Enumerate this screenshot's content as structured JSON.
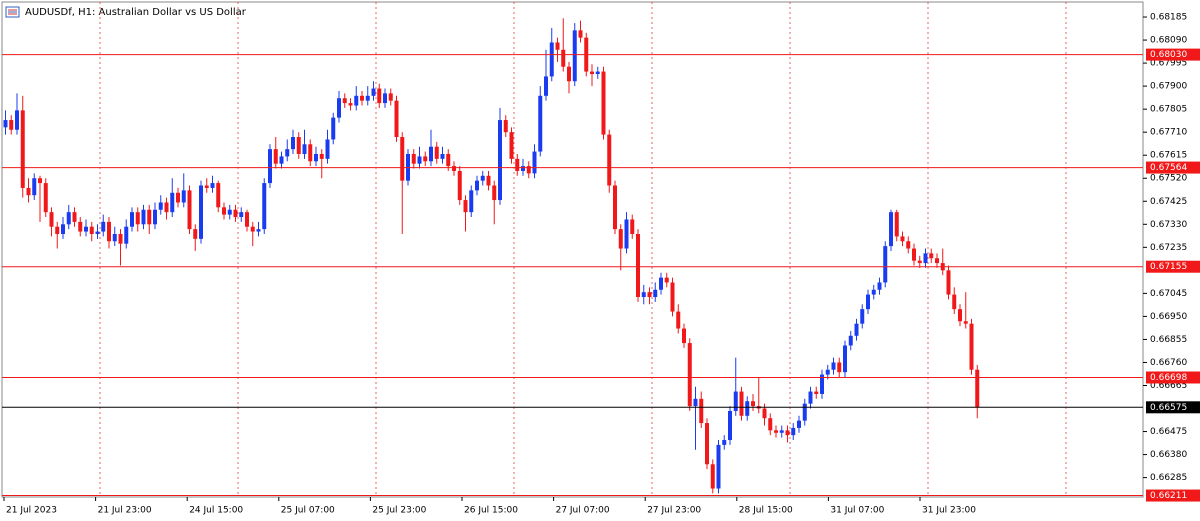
{
  "chart_data": {
    "type": "candlestick",
    "title": "AUDUSDf, H1:  Australian Dollar vs US Dollar",
    "up_color": "#1a3cf0",
    "down_color": "#f01818",
    "grid": true,
    "grid_color": "#e04040",
    "ylim": [
      0.66205,
      0.68247
    ],
    "yticks": [
      0.68185,
      {
        "value": 0.6809,
        "label": "0.68090"
      },
      0.67995,
      {
        "value": 0.679,
        "label": "0.67900"
      },
      0.67805,
      {
        "value": 0.6771,
        "label": "0.67710"
      },
      0.67615,
      {
        "value": 0.6752,
        "label": "0.67520"
      },
      0.67425,
      {
        "value": 0.6733,
        "label": "0.67330"
      },
      0.67235,
      0.67045,
      {
        "value": 0.6695,
        "label": "0.66950"
      },
      0.66855,
      {
        "value": 0.6676,
        "label": "0.66760"
      },
      0.66665,
      0.66475,
      {
        "value": 0.6638,
        "label": "0.66380"
      },
      0.66285
    ],
    "levels": [
      {
        "value": 0.6803,
        "label": "0.68030"
      },
      0.67564,
      0.67155,
      0.66698,
      0.66211
    ],
    "level_color": "#f01818",
    "bid": 0.66575,
    "bid_color": "#000000",
    "x_labels": [
      "21 Jul 2023",
      "21 Jul 23:00",
      "24 Jul 15:00",
      "25 Jul 07:00",
      "25 Jul 23:00",
      "26 Jul 15:00",
      "27 Jul 07:00",
      "27 Jul 23:00",
      "28 Jul 15:00",
      "31 Jul 07:00",
      "31 Jul 23:00"
    ],
    "candles": [
      [
        0.6773,
        0.678,
        0.677,
        0.6776
      ],
      [
        0.6776,
        0.6778,
        0.677,
        0.6772
      ],
      [
        0.6772,
        0.6787,
        0.677,
        0.678
      ],
      [
        0.678,
        0.6786,
        0.6744,
        0.6748
      ],
      [
        0.6748,
        0.6752,
        0.6742,
        0.6745
      ],
      [
        0.6745,
        0.6754,
        0.6743,
        0.6752
      ],
      [
        0.6752,
        0.6753,
        0.6734,
        0.675
      ],
      [
        0.675,
        0.6752,
        0.6736,
        0.6738
      ],
      [
        0.6738,
        0.674,
        0.6728,
        0.6732
      ],
      [
        0.6732,
        0.6734,
        0.6723,
        0.6729
      ],
      [
        0.6729,
        0.6736,
        0.6727,
        0.6733
      ],
      [
        0.6733,
        0.6741,
        0.6731,
        0.6738
      ],
      [
        0.6738,
        0.674,
        0.6732,
        0.6734
      ],
      [
        0.6734,
        0.6736,
        0.6728,
        0.673
      ],
      [
        0.673,
        0.6735,
        0.6728,
        0.6732
      ],
      [
        0.6732,
        0.6734,
        0.6726,
        0.6729
      ],
      [
        0.6729,
        0.6733,
        0.6727,
        0.673
      ],
      [
        0.673,
        0.6737,
        0.6728,
        0.6734
      ],
      [
        0.6734,
        0.6736,
        0.6723,
        0.6726
      ],
      [
        0.6726,
        0.6732,
        0.6724,
        0.6729
      ],
      [
        0.6729,
        0.6731,
        0.6716,
        0.6725
      ],
      [
        0.6725,
        0.6735,
        0.6723,
        0.6732
      ],
      [
        0.6732,
        0.674,
        0.673,
        0.6738
      ],
      [
        0.6738,
        0.674,
        0.673,
        0.6733
      ],
      [
        0.6733,
        0.6741,
        0.6731,
        0.6739
      ],
      [
        0.6739,
        0.6741,
        0.6729,
        0.6733
      ],
      [
        0.6733,
        0.6742,
        0.6731,
        0.6739
      ],
      [
        0.6739,
        0.6745,
        0.6737,
        0.6742
      ],
      [
        0.6742,
        0.6744,
        0.6735,
        0.6738
      ],
      [
        0.6738,
        0.6752,
        0.6736,
        0.6746
      ],
      [
        0.6746,
        0.6748,
        0.674,
        0.6742
      ],
      [
        0.6742,
        0.6754,
        0.674,
        0.6747
      ],
      [
        0.6747,
        0.6749,
        0.6729,
        0.6731
      ],
      [
        0.6731,
        0.6733,
        0.6722,
        0.6727
      ],
      [
        0.6727,
        0.6751,
        0.6725,
        0.6749
      ],
      [
        0.6749,
        0.6752,
        0.6746,
        0.6748
      ],
      [
        0.6748,
        0.6753,
        0.6746,
        0.675
      ],
      [
        0.675,
        0.6751,
        0.6738,
        0.674
      ],
      [
        0.674,
        0.6742,
        0.6735,
        0.6737
      ],
      [
        0.6737,
        0.6741,
        0.6735,
        0.6739
      ],
      [
        0.6739,
        0.6741,
        0.6734,
        0.6736
      ],
      [
        0.6736,
        0.674,
        0.6734,
        0.6738
      ],
      [
        0.6738,
        0.6739,
        0.673,
        0.6732
      ],
      [
        0.6732,
        0.6734,
        0.6724,
        0.673
      ],
      [
        0.673,
        0.6734,
        0.6728,
        0.6731
      ],
      [
        0.6731,
        0.6752,
        0.6729,
        0.675
      ],
      [
        0.675,
        0.6766,
        0.6748,
        0.6764
      ],
      [
        0.6764,
        0.6769,
        0.6756,
        0.6758
      ],
      [
        0.6758,
        0.6763,
        0.6756,
        0.6761
      ],
      [
        0.6761,
        0.6768,
        0.6759,
        0.6764
      ],
      [
        0.6764,
        0.6772,
        0.6762,
        0.6769
      ],
      [
        0.6769,
        0.6771,
        0.676,
        0.6762
      ],
      [
        0.6762,
        0.6772,
        0.676,
        0.6766
      ],
      [
        0.6766,
        0.6768,
        0.6757,
        0.6759
      ],
      [
        0.6759,
        0.6765,
        0.6757,
        0.6762
      ],
      [
        0.6762,
        0.6764,
        0.6752,
        0.676
      ],
      [
        0.676,
        0.6772,
        0.6758,
        0.6768
      ],
      [
        0.6768,
        0.6779,
        0.6766,
        0.6777
      ],
      [
        0.6777,
        0.6788,
        0.6775,
        0.6785
      ],
      [
        0.6785,
        0.6787,
        0.6781,
        0.6783
      ],
      [
        0.6783,
        0.6785,
        0.678,
        0.6782
      ],
      [
        0.6782,
        0.679,
        0.678,
        0.6786
      ],
      [
        0.6786,
        0.6788,
        0.6782,
        0.6784
      ],
      [
        0.6784,
        0.679,
        0.6782,
        0.6786
      ],
      [
        0.6786,
        0.6792,
        0.6784,
        0.6789
      ],
      [
        0.6789,
        0.6791,
        0.6781,
        0.6783
      ],
      [
        0.6783,
        0.6789,
        0.6781,
        0.6787
      ],
      [
        0.6787,
        0.6789,
        0.6782,
        0.6784
      ],
      [
        0.6784,
        0.6786,
        0.6767,
        0.6769
      ],
      [
        0.6769,
        0.6771,
        0.6729,
        0.6751
      ],
      [
        0.6751,
        0.6764,
        0.6749,
        0.6762
      ],
      [
        0.6762,
        0.6764,
        0.6756,
        0.6758
      ],
      [
        0.6758,
        0.6765,
        0.6756,
        0.6761
      ],
      [
        0.6761,
        0.6763,
        0.6757,
        0.6759
      ],
      [
        0.6759,
        0.6772,
        0.6757,
        0.6765
      ],
      [
        0.6765,
        0.6767,
        0.6758,
        0.676
      ],
      [
        0.676,
        0.6765,
        0.6758,
        0.6762
      ],
      [
        0.6762,
        0.6764,
        0.6755,
        0.6757
      ],
      [
        0.6757,
        0.6759,
        0.6753,
        0.6755
      ],
      [
        0.6755,
        0.6757,
        0.6741,
        0.6743
      ],
      [
        0.6743,
        0.6745,
        0.673,
        0.6738
      ],
      [
        0.6738,
        0.6749,
        0.6736,
        0.6747
      ],
      [
        0.6747,
        0.6753,
        0.6745,
        0.6751
      ],
      [
        0.6751,
        0.6755,
        0.6749,
        0.6753
      ],
      [
        0.6753,
        0.6755,
        0.6747,
        0.6749
      ],
      [
        0.6749,
        0.6751,
        0.6733,
        0.6743
      ],
      [
        0.6743,
        0.6781,
        0.6741,
        0.6776
      ],
      [
        0.6776,
        0.6778,
        0.6769,
        0.6771
      ],
      [
        0.6771,
        0.6773,
        0.6758,
        0.676
      ],
      [
        0.676,
        0.6762,
        0.6753,
        0.6755
      ],
      [
        0.6755,
        0.676,
        0.6753,
        0.6757
      ],
      [
        0.6757,
        0.6759,
        0.6752,
        0.6754
      ],
      [
        0.6754,
        0.6766,
        0.6752,
        0.6763
      ],
      [
        0.6763,
        0.679,
        0.6761,
        0.6786
      ],
      [
        0.6786,
        0.6805,
        0.6784,
        0.6794
      ],
      [
        0.6794,
        0.6814,
        0.6792,
        0.6808
      ],
      [
        0.6808,
        0.681,
        0.68,
        0.6805
      ],
      [
        0.6805,
        0.6818,
        0.6796,
        0.6798
      ],
      [
        0.6798,
        0.68,
        0.6787,
        0.6792
      ],
      [
        0.6792,
        0.6816,
        0.679,
        0.6813
      ],
      [
        0.6813,
        0.6817,
        0.6808,
        0.681
      ],
      [
        0.681,
        0.6812,
        0.6794,
        0.6796
      ],
      [
        0.6796,
        0.6799,
        0.679,
        0.6795
      ],
      [
        0.6795,
        0.6798,
        0.6793,
        0.6796
      ],
      [
        0.6796,
        0.6798,
        0.6768,
        0.677
      ],
      [
        0.677,
        0.6772,
        0.6746,
        0.6749
      ],
      [
        0.6749,
        0.6751,
        0.6729,
        0.6731
      ],
      [
        0.6731,
        0.6733,
        0.6714,
        0.6723
      ],
      [
        0.6723,
        0.6738,
        0.6721,
        0.6735
      ],
      [
        0.6735,
        0.6737,
        0.6727,
        0.6729
      ],
      [
        0.6729,
        0.6731,
        0.6701,
        0.6703
      ],
      [
        0.6703,
        0.6708,
        0.67,
        0.6705
      ],
      [
        0.6705,
        0.6707,
        0.67,
        0.6703
      ],
      [
        0.6703,
        0.6709,
        0.6701,
        0.6706
      ],
      [
        0.6706,
        0.6713,
        0.6704,
        0.6711
      ],
      [
        0.6711,
        0.6713,
        0.6707,
        0.6709
      ],
      [
        0.6709,
        0.6711,
        0.6695,
        0.6697
      ],
      [
        0.6697,
        0.67,
        0.6688,
        0.669
      ],
      [
        0.669,
        0.6692,
        0.6682,
        0.6684
      ],
      [
        0.6684,
        0.6686,
        0.6656,
        0.6658
      ],
      [
        0.6658,
        0.6666,
        0.664,
        0.6661
      ],
      [
        0.6661,
        0.6664,
        0.6649,
        0.6651
      ],
      [
        0.6651,
        0.6653,
        0.6632,
        0.6634
      ],
      [
        0.6634,
        0.6636,
        0.6622,
        0.6624
      ],
      [
        0.6624,
        0.6644,
        0.6622,
        0.6642
      ],
      [
        0.6642,
        0.6646,
        0.664,
        0.6644
      ],
      [
        0.6644,
        0.6658,
        0.6642,
        0.6656
      ],
      [
        0.6656,
        0.6678,
        0.6654,
        0.6664
      ],
      [
        0.6664,
        0.6666,
        0.6652,
        0.6654
      ],
      [
        0.6654,
        0.6662,
        0.6652,
        0.666
      ],
      [
        0.666,
        0.6663,
        0.6656,
        0.6658
      ],
      [
        0.6658,
        0.667,
        0.6655,
        0.6657
      ],
      [
        0.6657,
        0.6659,
        0.665,
        0.6653
      ],
      [
        0.6653,
        0.6655,
        0.6646,
        0.6648
      ],
      [
        0.6648,
        0.665,
        0.6645,
        0.6647
      ],
      [
        0.6647,
        0.665,
        0.6645,
        0.6648
      ],
      [
        0.6648,
        0.665,
        0.6643,
        0.6646
      ],
      [
        0.6646,
        0.6651,
        0.6644,
        0.6649
      ],
      [
        0.6649,
        0.6654,
        0.6647,
        0.6652
      ],
      [
        0.6652,
        0.6661,
        0.665,
        0.6659
      ],
      [
        0.6659,
        0.6666,
        0.6657,
        0.6664
      ],
      [
        0.6664,
        0.6666,
        0.6661,
        0.6663
      ],
      [
        0.6663,
        0.6673,
        0.6661,
        0.6671
      ],
      [
        0.6671,
        0.6675,
        0.6669,
        0.6673
      ],
      [
        0.6673,
        0.6678,
        0.6671,
        0.6676
      ],
      [
        0.6676,
        0.6678,
        0.667,
        0.6672
      ],
      [
        0.6672,
        0.6685,
        0.667,
        0.6683
      ],
      [
        0.6683,
        0.6689,
        0.6681,
        0.6687
      ],
      [
        0.6687,
        0.6694,
        0.6685,
        0.6692
      ],
      [
        0.6692,
        0.67,
        0.669,
        0.6698
      ],
      [
        0.6698,
        0.6706,
        0.6696,
        0.6704
      ],
      [
        0.6704,
        0.6708,
        0.6702,
        0.6706
      ],
      [
        0.6706,
        0.6711,
        0.6704,
        0.6709
      ],
      [
        0.6709,
        0.6726,
        0.6707,
        0.6724
      ],
      [
        0.6724,
        0.6739,
        0.6722,
        0.6738
      ],
      [
        0.6738,
        0.6739,
        0.6726,
        0.6728
      ],
      [
        0.6728,
        0.673,
        0.6724,
        0.6726
      ],
      [
        0.6726,
        0.6728,
        0.6721,
        0.6723
      ],
      [
        0.6723,
        0.6725,
        0.6716,
        0.6718
      ],
      [
        0.6718,
        0.672,
        0.6715,
        0.6717
      ],
      [
        0.6717,
        0.6723,
        0.6715,
        0.6721
      ],
      [
        0.6721,
        0.6723,
        0.6717,
        0.6719
      ],
      [
        0.6719,
        0.6721,
        0.6715,
        0.6717
      ],
      [
        0.6717,
        0.6723,
        0.6712,
        0.6714
      ],
      [
        0.6714,
        0.6716,
        0.6702,
        0.6704
      ],
      [
        0.6704,
        0.6707,
        0.6696,
        0.6698
      ],
      [
        0.6698,
        0.67,
        0.6691,
        0.6693
      ],
      [
        0.6693,
        0.6705,
        0.669,
        0.6692
      ],
      [
        0.6692,
        0.6694,
        0.6671,
        0.6673
      ],
      [
        0.6673,
        0.6675,
        0.6653,
        0.66575
      ]
    ]
  }
}
